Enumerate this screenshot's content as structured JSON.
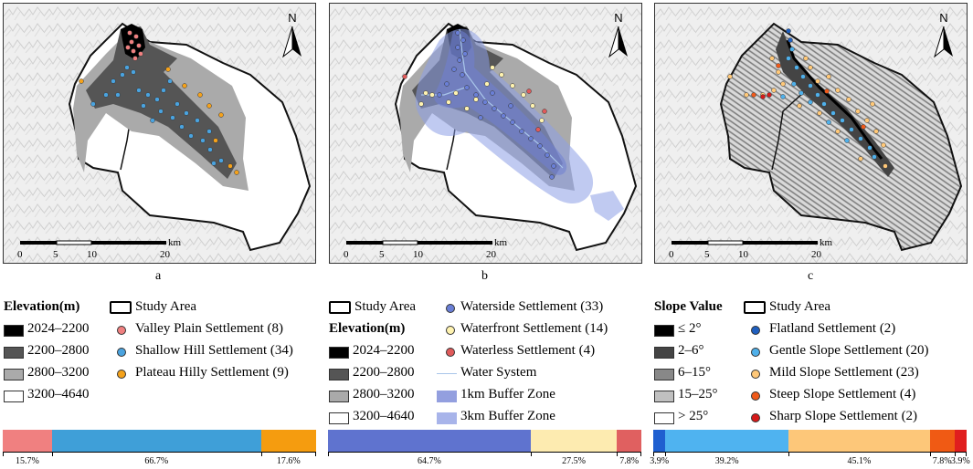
{
  "panels": [
    {
      "id": "a",
      "label": "a",
      "north": "N",
      "scale_unit": "km",
      "scale_ticks": [
        "0",
        "5",
        "10",
        "20"
      ]
    },
    {
      "id": "b",
      "label": "b",
      "north": "N",
      "scale_unit": "km",
      "scale_ticks": [
        "0",
        "5",
        "10",
        "20"
      ]
    },
    {
      "id": "c",
      "label": "c",
      "north": "N",
      "scale_unit": "km",
      "scale_ticks": [
        "0",
        "5",
        "10",
        "20"
      ]
    }
  ],
  "legends": {
    "a": {
      "title": "Elevation(m)",
      "study_area": "Study Area",
      "elevation_classes": [
        {
          "label": "2024–2200",
          "color": "#000000"
        },
        {
          "label": "2200–2800",
          "color": "#555555"
        },
        {
          "label": "2800–3200",
          "color": "#aaaaaa"
        },
        {
          "label": "3200–4640",
          "color": "#ffffff"
        }
      ],
      "settlements": [
        {
          "label": "Valley Plain Settlement (8)",
          "color": "#f08080"
        },
        {
          "label": "Shallow Hill Settlement (34)",
          "color": "#4aa3df"
        },
        {
          "label": "Plateau Hilly Settlement (9)",
          "color": "#f5a21b"
        }
      ]
    },
    "b": {
      "study_area": "Study Area",
      "title": "Elevation(m)",
      "elevation_classes": [
        {
          "label": "2024–2200",
          "color": "#000000"
        },
        {
          "label": "2200–2800",
          "color": "#555555"
        },
        {
          "label": "2800–3200",
          "color": "#aaaaaa"
        },
        {
          "label": "3200–4640",
          "color": "#ffffff"
        }
      ],
      "settlements": [
        {
          "label": "Waterside Settlement (33)",
          "color": "#6a7fd6"
        },
        {
          "label": "Waterfront Settlement (14)",
          "color": "#fff3b0"
        },
        {
          "label": "Waterless Settlement (4)",
          "color": "#e05a5a"
        }
      ],
      "water_system": "Water System",
      "buffer_1km": "1km Buffer Zone",
      "buffer_3km": "3km Buffer Zone"
    },
    "c": {
      "title": "Slope Value",
      "study_area": "Study Area",
      "slope_classes": [
        {
          "label": "≤ 2°",
          "color": "#000000"
        },
        {
          "label": "2–6°",
          "color": "#444444"
        },
        {
          "label": "6–15°",
          "color": "#888888"
        },
        {
          "label": "15–25°",
          "color": "#c0c0c0"
        },
        {
          "label": "> 25°",
          "color": "#ffffff"
        }
      ],
      "settlements": [
        {
          "label": "Flatland Settlement (2)",
          "color": "#1f5fbf"
        },
        {
          "label": "Gentle Slope Settlement (20)",
          "color": "#4fb0ea"
        },
        {
          "label": "Mild Slope Settlement (23)",
          "color": "#ffc878"
        },
        {
          "label": "Steep Slope Settlement (4)",
          "color": "#f05a1a"
        },
        {
          "label": "Sharp Slope Settlement (2)",
          "color": "#d61a1a"
        }
      ]
    }
  },
  "bars": [
    {
      "id": "a",
      "segments": [
        {
          "value": 15.7,
          "label": "15.7%",
          "color": "#f08080"
        },
        {
          "value": 66.7,
          "label": "66.7%",
          "color": "#3f9fd8"
        },
        {
          "value": 17.6,
          "label": "17.6%",
          "color": "#f59c0f"
        }
      ]
    },
    {
      "id": "b",
      "segments": [
        {
          "value": 64.7,
          "label": "64.7%",
          "color": "#5f73cf"
        },
        {
          "value": 27.5,
          "label": "27.5%",
          "color": "#fdebb0"
        },
        {
          "value": 7.8,
          "label": "7.8%",
          "color": "#e06060"
        }
      ]
    },
    {
      "id": "c",
      "segments": [
        {
          "value": 3.9,
          "label": "3.9%",
          "color": "#1f5fd0"
        },
        {
          "value": 39.2,
          "label": "39.2%",
          "color": "#4fb3f0"
        },
        {
          "value": 45.1,
          "label": "45.1%",
          "color": "#fdc779"
        },
        {
          "value": 7.8,
          "label": "7.8%",
          "color": "#f05a14"
        },
        {
          "value": 3.9,
          "label": "3.9%",
          "color": "#e01e1e"
        }
      ]
    }
  ]
}
